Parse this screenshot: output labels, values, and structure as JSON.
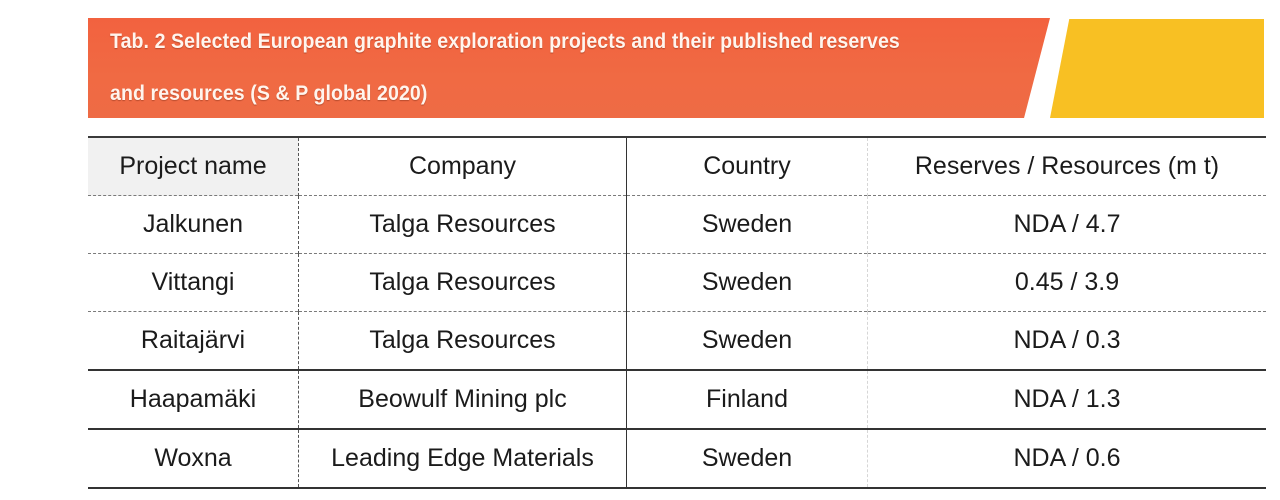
{
  "caption": {
    "label": "Tab. 2",
    "line1": "Tab. 2   Selected European graphite exploration projects and their published reserves",
    "line2": "and resources (S & P global 2020)",
    "banner_color": "#f2623f",
    "accent_color": "#f8c023"
  },
  "table": {
    "headers": [
      "Project name",
      "Company",
      "Country",
      "Reserves / Resources (m t)"
    ],
    "rows": [
      [
        "Jalkunen",
        "Talga Resources",
        "Sweden",
        "NDA / 4.7"
      ],
      [
        "Vittangi",
        "Talga Resources",
        "Sweden",
        "0.45 / 3.9"
      ],
      [
        "Raitajärvi",
        "Talga Resources",
        "Sweden",
        "NDA / 0.3"
      ],
      [
        "Haapamäki",
        "Beowulf Mining plc",
        "Finland",
        "NDA / 1.3"
      ],
      [
        "Woxna",
        "Leading Edge Materials",
        "Sweden",
        "NDA / 0.6"
      ]
    ]
  }
}
